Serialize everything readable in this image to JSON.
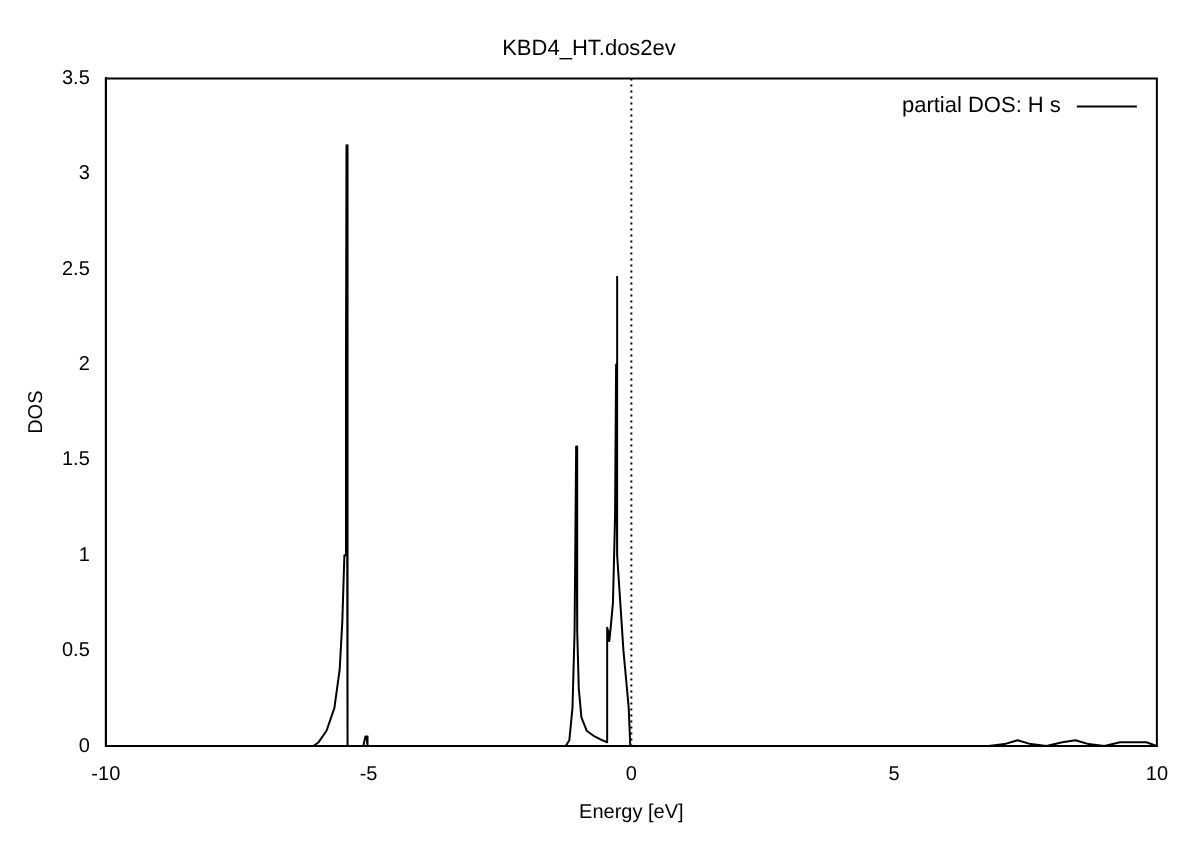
{
  "chart_data": {
    "type": "line",
    "title": "KBD4_HT.dos2ev",
    "xlabel": "Energy [eV]",
    "ylabel": "DOS",
    "x": [
      -10,
      -6.05,
      -5.95,
      -5.8,
      -5.65,
      -5.55,
      -5.5,
      -5.46,
      -5.43,
      -5.42,
      -5.4,
      -5.1,
      -5.06,
      -5.04,
      -5.02,
      -1.25,
      -1.18,
      -1.12,
      -1.08,
      -1.05,
      -1.03,
      -1.0,
      -0.95,
      -0.85,
      -0.7,
      -0.55,
      -0.47,
      -0.46,
      -0.44,
      -0.42,
      -0.4,
      -0.35,
      -0.31,
      -0.29,
      -0.28,
      -0.26,
      -0.15,
      -0.05,
      -0.02,
      0.5,
      6.8,
      7.1,
      7.35,
      7.6,
      7.9,
      8.2,
      8.45,
      8.7,
      9.0,
      9.3,
      9.55,
      9.8,
      10
    ],
    "series": [
      {
        "name": "partial DOS: H s",
        "color": "#000000",
        "values": [
          0,
          0,
          0.02,
          0.08,
          0.2,
          0.4,
          0.65,
          1.0,
          2.0,
          3.15,
          0,
          0,
          0.05,
          0.05,
          0,
          0,
          0.03,
          0.2,
          0.6,
          1.57,
          0.6,
          0.3,
          0.15,
          0.08,
          0.05,
          0.03,
          0.02,
          0.62,
          0.6,
          0.55,
          0.6,
          0.75,
          1.2,
          2.0,
          2.46,
          1.0,
          0.5,
          0.2,
          0,
          0,
          0,
          0.01,
          0.03,
          0.01,
          0,
          0.02,
          0.03,
          0.01,
          0,
          0.02,
          0.02,
          0.02,
          0
        ]
      }
    ],
    "xlim": [
      -10,
      10
    ],
    "xticks": [
      -10,
      -5,
      0,
      5,
      10
    ],
    "ylim": [
      0,
      3.5
    ],
    "yticks": [
      0,
      0.5,
      1,
      1.5,
      2,
      2.5,
      3,
      3.5
    ],
    "ref_lines": [
      {
        "axis": "x",
        "value": 0,
        "line_style": "dotted",
        "color": "#000000"
      }
    ],
    "legend": "top right",
    "grid": false,
    "marker": "none",
    "line_style": "solid"
  }
}
